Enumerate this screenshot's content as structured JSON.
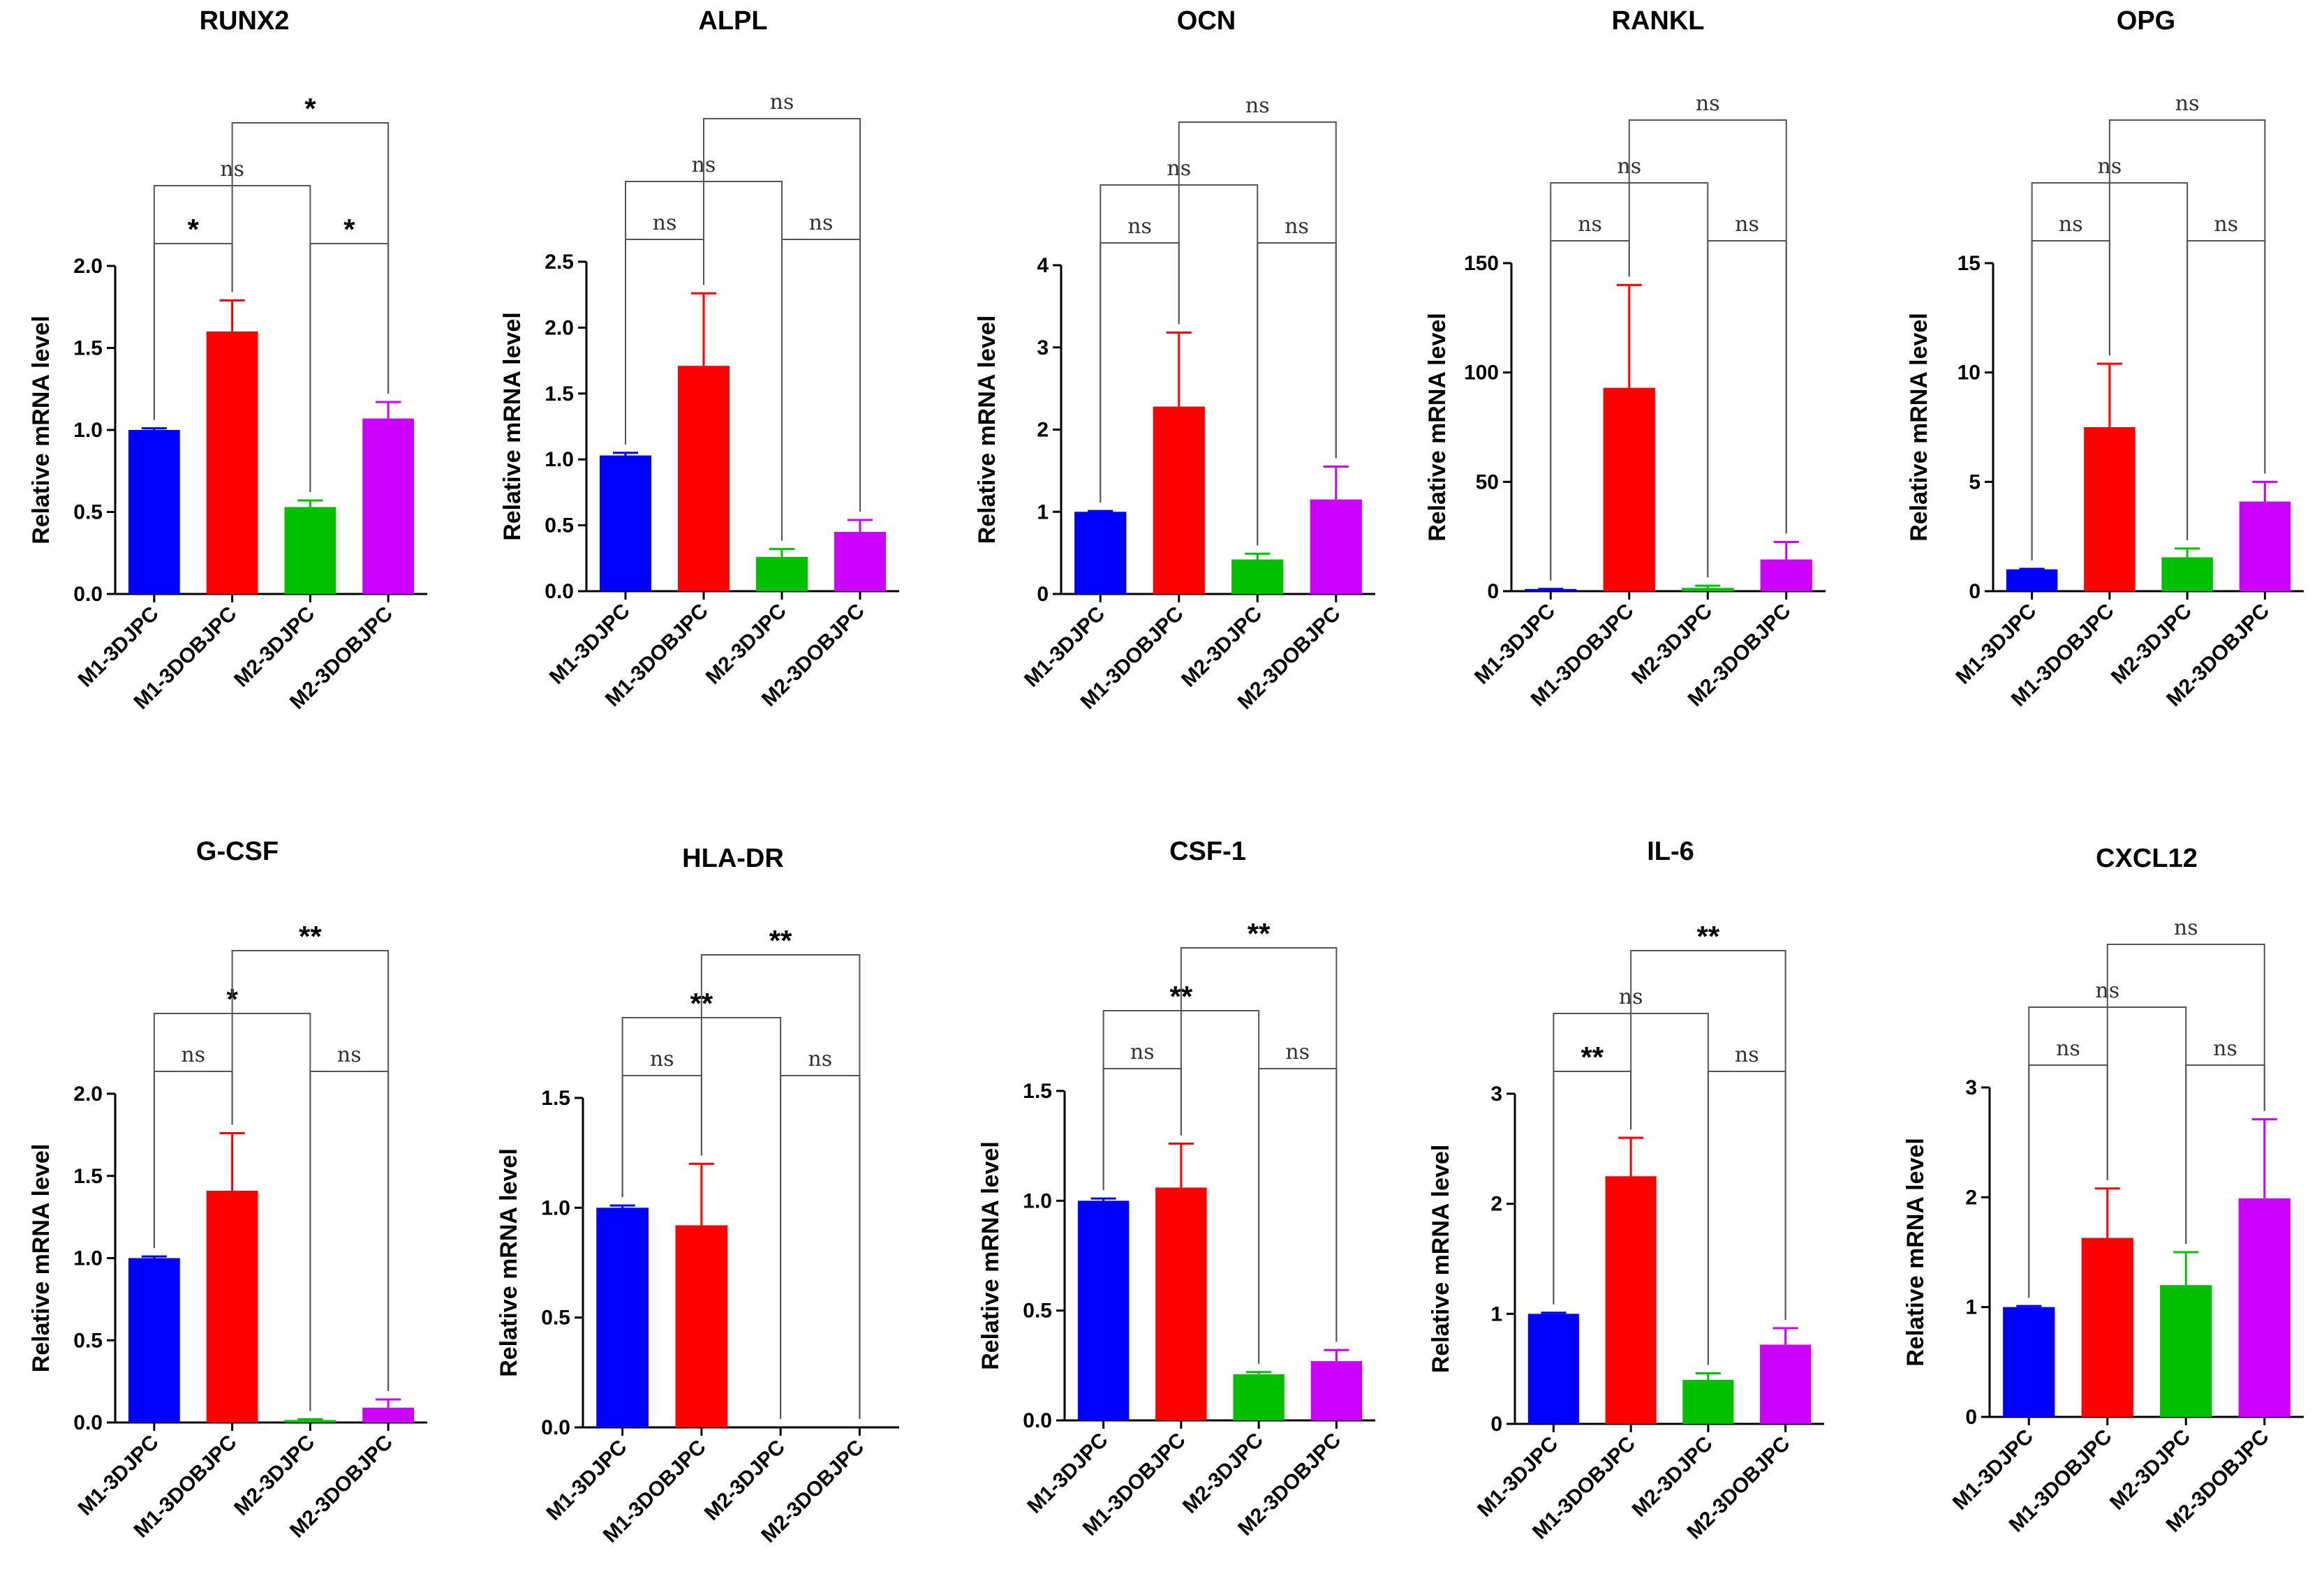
{
  "colors": {
    "M1-3DJPC": "#0000ff",
    "M1-3DOBJPC": "#ff0000",
    "M2-3DJPC": "#00c000",
    "M2-3DOBJPC": "#cc00ff"
  },
  "chart_data": [
    {
      "type": "bar",
      "title": "RUNX2",
      "ylabel": "Relative mRNA level",
      "categories": [
        "M1-3DJPC",
        "M1-3DOBJPC",
        "M2-3DJPC",
        "M2-3DOBJPC"
      ],
      "values": [
        1.0,
        1.6,
        0.53,
        1.07
      ],
      "errors": [
        0.01,
        0.19,
        0.04,
        0.1
      ],
      "ylim": [
        0,
        2.0
      ],
      "ticks": [
        0,
        0.5,
        1.0,
        1.5,
        2.0
      ],
      "tick_labels": [
        "0.0",
        "0.5",
        "1.0",
        "1.5",
        "2.0"
      ],
      "comparisons": [
        {
          "from": 0,
          "to": 1,
          "label": "*"
        },
        {
          "from": 2,
          "to": 3,
          "label": "*"
        },
        {
          "from": 0,
          "to": 2,
          "label": "ns"
        },
        {
          "from": 1,
          "to": 3,
          "label": "*"
        }
      ]
    },
    {
      "type": "bar",
      "title": "ALPL",
      "ylabel": "Relative mRNA level",
      "categories": [
        "M1-3DJPC",
        "M1-3DOBJPC",
        "M2-3DJPC",
        "M2-3DOBJPC"
      ],
      "values": [
        1.03,
        1.71,
        0.26,
        0.45
      ],
      "errors": [
        0.02,
        0.55,
        0.06,
        0.09
      ],
      "ylim": [
        0,
        2.5
      ],
      "ticks": [
        0,
        0.5,
        1.0,
        1.5,
        2.0,
        2.5
      ],
      "tick_labels": [
        "0.0",
        "0.5",
        "1.0",
        "1.5",
        "2.0",
        "2.5"
      ],
      "comparisons": [
        {
          "from": 0,
          "to": 1,
          "label": "ns"
        },
        {
          "from": 2,
          "to": 3,
          "label": "ns"
        },
        {
          "from": 0,
          "to": 2,
          "label": "ns"
        },
        {
          "from": 1,
          "to": 3,
          "label": "ns"
        }
      ]
    },
    {
      "type": "bar",
      "title": "OCN",
      "ylabel": "Relative mRNA level",
      "categories": [
        "M1-3DJPC",
        "M1-3DOBJPC",
        "M2-3DJPC",
        "M2-3DOBJPC"
      ],
      "values": [
        1.0,
        2.28,
        0.42,
        1.15
      ],
      "errors": [
        0.01,
        0.9,
        0.07,
        0.4
      ],
      "ylim": [
        0,
        4
      ],
      "ticks": [
        0,
        1,
        2,
        3,
        4
      ],
      "tick_labels": [
        "0",
        "1",
        "2",
        "3",
        "4"
      ],
      "comparisons": [
        {
          "from": 0,
          "to": 1,
          "label": "ns"
        },
        {
          "from": 2,
          "to": 3,
          "label": "ns"
        },
        {
          "from": 0,
          "to": 2,
          "label": "ns"
        },
        {
          "from": 1,
          "to": 3,
          "label": "ns"
        }
      ]
    },
    {
      "type": "bar",
      "title": "RANKL",
      "ylabel": "Relative mRNA level",
      "categories": [
        "M1-3DJPC",
        "M1-3DOBJPC",
        "M2-3DJPC",
        "M2-3DOBJPC"
      ],
      "values": [
        1.0,
        93,
        1.5,
        14.5
      ],
      "errors": [
        0.05,
        47,
        1.0,
        8
      ],
      "ylim": [
        0,
        150
      ],
      "ticks": [
        0,
        50,
        100,
        150
      ],
      "tick_labels": [
        "0",
        "50",
        "100",
        "150"
      ],
      "comparisons": [
        {
          "from": 0,
          "to": 1,
          "label": "ns"
        },
        {
          "from": 2,
          "to": 3,
          "label": "ns"
        },
        {
          "from": 0,
          "to": 2,
          "label": "ns"
        },
        {
          "from": 1,
          "to": 3,
          "label": "ns"
        }
      ]
    },
    {
      "type": "bar",
      "title": "OPG",
      "ylabel": "Relative mRNA level",
      "categories": [
        "M1-3DJPC",
        "M1-3DOBJPC",
        "M2-3DJPC",
        "M2-3DOBJPC"
      ],
      "values": [
        1.0,
        7.5,
        1.55,
        4.1
      ],
      "errors": [
        0.02,
        2.9,
        0.4,
        0.9
      ],
      "ylim": [
        0,
        15
      ],
      "ticks": [
        0,
        5,
        10,
        15
      ],
      "tick_labels": [
        "0",
        "5",
        "10",
        "15"
      ],
      "comparisons": [
        {
          "from": 0,
          "to": 1,
          "label": "ns"
        },
        {
          "from": 2,
          "to": 3,
          "label": "ns"
        },
        {
          "from": 0,
          "to": 2,
          "label": "ns"
        },
        {
          "from": 1,
          "to": 3,
          "label": "ns"
        }
      ]
    },
    {
      "type": "bar",
      "title": "G-CSF",
      "ylabel": "Relative mRNA level",
      "categories": [
        "M1-3DJPC",
        "M1-3DOBJPC",
        "M2-3DJPC",
        "M2-3DOBJPC"
      ],
      "values": [
        1.0,
        1.41,
        0.015,
        0.09
      ],
      "errors": [
        0.01,
        0.35,
        0.005,
        0.05
      ],
      "ylim": [
        0,
        2.0
      ],
      "ticks": [
        0,
        0.5,
        1.0,
        1.5,
        2.0
      ],
      "tick_labels": [
        "0.0",
        "0.5",
        "1.0",
        "1.5",
        "2.0"
      ],
      "comparisons": [
        {
          "from": 0,
          "to": 1,
          "label": "ns"
        },
        {
          "from": 2,
          "to": 3,
          "label": "ns"
        },
        {
          "from": 0,
          "to": 2,
          "label": "*"
        },
        {
          "from": 1,
          "to": 3,
          "label": "**"
        }
      ]
    },
    {
      "type": "bar",
      "title": "HLA-DR",
      "ylabel": "Relative mRNA level",
      "categories": [
        "M1-3DJPC",
        "M1-3DOBJPC",
        "M2-3DJPC",
        "M2-3DOBJPC"
      ],
      "values": [
        1.0,
        0.92,
        0.0,
        0.0
      ],
      "errors": [
        0.01,
        0.28,
        0,
        0
      ],
      "ylim": [
        0,
        1.5
      ],
      "ticks": [
        0,
        0.5,
        1.0,
        1.5
      ],
      "tick_labels": [
        "0.0",
        "0.5",
        "1.0",
        "1.5"
      ],
      "comparisons": [
        {
          "from": 0,
          "to": 1,
          "label": "ns"
        },
        {
          "from": 2,
          "to": 3,
          "label": "ns"
        },
        {
          "from": 0,
          "to": 2,
          "label": "**"
        },
        {
          "from": 1,
          "to": 3,
          "label": "**"
        }
      ]
    },
    {
      "type": "bar",
      "title": "CSF-1",
      "ylabel": "Relative mRNA level",
      "categories": [
        "M1-3DJPC",
        "M1-3DOBJPC",
        "M2-3DJPC",
        "M2-3DOBJPC"
      ],
      "values": [
        1.0,
        1.06,
        0.21,
        0.27
      ],
      "errors": [
        0.01,
        0.2,
        0.01,
        0.05
      ],
      "ylim": [
        0,
        1.5
      ],
      "ticks": [
        0,
        0.5,
        1.0,
        1.5
      ],
      "tick_labels": [
        "0.0",
        "0.5",
        "1.0",
        "1.5"
      ],
      "comparisons": [
        {
          "from": 0,
          "to": 1,
          "label": "ns"
        },
        {
          "from": 2,
          "to": 3,
          "label": "ns"
        },
        {
          "from": 0,
          "to": 2,
          "label": "**"
        },
        {
          "from": 1,
          "to": 3,
          "label": "**"
        }
      ]
    },
    {
      "type": "bar",
      "title": "IL-6",
      "ylabel": "Relative mRNA level",
      "categories": [
        "M1-3DJPC",
        "M1-3DOBJPC",
        "M2-3DJPC",
        "M2-3DOBJPC"
      ],
      "values": [
        1.0,
        2.25,
        0.4,
        0.72
      ],
      "errors": [
        0.01,
        0.35,
        0.06,
        0.15
      ],
      "ylim": [
        0,
        3
      ],
      "ticks": [
        0,
        1,
        2,
        3
      ],
      "tick_labels": [
        "0",
        "1",
        "2",
        "3"
      ],
      "comparisons": [
        {
          "from": 0,
          "to": 1,
          "label": "**"
        },
        {
          "from": 2,
          "to": 3,
          "label": "ns"
        },
        {
          "from": 0,
          "to": 2,
          "label": "ns"
        },
        {
          "from": 1,
          "to": 3,
          "label": "**"
        }
      ]
    },
    {
      "type": "bar",
      "title": "CXCL12",
      "ylabel": "Relative mRNA level",
      "categories": [
        "M1-3DJPC",
        "M1-3DOBJPC",
        "M2-3DJPC",
        "M2-3DOBJPC"
      ],
      "values": [
        1.0,
        1.63,
        1.2,
        1.99
      ],
      "errors": [
        0.01,
        0.45,
        0.3,
        0.72
      ],
      "ylim": [
        0,
        3
      ],
      "ticks": [
        0,
        1,
        2,
        3
      ],
      "tick_labels": [
        "0",
        "1",
        "2",
        "3"
      ],
      "comparisons": [
        {
          "from": 0,
          "to": 1,
          "label": "ns"
        },
        {
          "from": 2,
          "to": 3,
          "label": "ns"
        },
        {
          "from": 0,
          "to": 2,
          "label": "ns"
        },
        {
          "from": 1,
          "to": 3,
          "label": "ns"
        }
      ]
    }
  ]
}
